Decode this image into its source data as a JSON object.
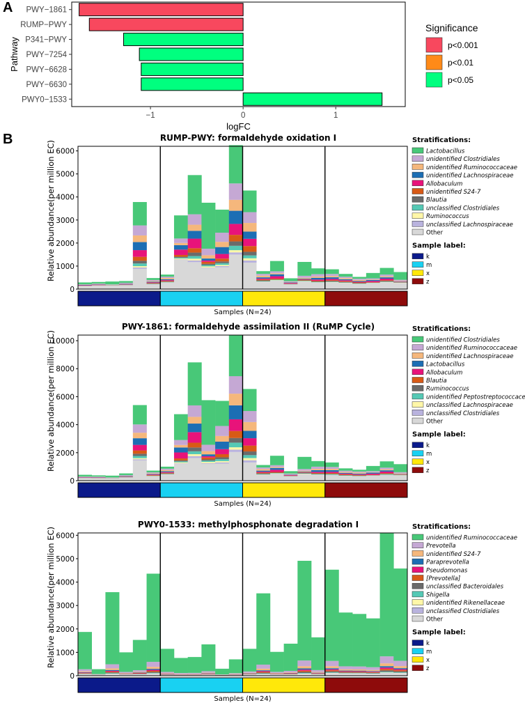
{
  "panel_a": {
    "letter": "A",
    "legend_title": "Significance",
    "legend": [
      {
        "label": "p<0.001",
        "color": "#F8485E"
      },
      {
        "label": "p<0.01",
        "color": "#FF8A18"
      },
      {
        "label": "p<0.05",
        "color": "#00FF7F"
      }
    ]
  },
  "panel_b": {
    "letter": "B"
  },
  "chart_data": [
    {
      "type": "bar",
      "orientation": "horizontal",
      "categories": [
        "PWY−1861",
        "RUMP−PWY",
        "P341−PWY",
        "PWY−7254",
        "PWY−6628",
        "PWY−6630",
        "PWY0−1533"
      ],
      "values": [
        -1.77,
        -1.66,
        -1.29,
        -1.12,
        -1.1,
        -1.1,
        1.5
      ],
      "significance": [
        "p<0.001",
        "p<0.001",
        "p<0.05",
        "p<0.05",
        "p<0.05",
        "p<0.05",
        "p<0.05"
      ],
      "xlabel": "logFC",
      "ylabel": "Pathway",
      "xlim": [
        -1.85,
        1.75
      ],
      "xticks": [
        -1,
        0,
        1
      ],
      "xtick_labels": [
        "−1",
        "0",
        "1"
      ]
    },
    {
      "type": "bar",
      "stacked": true,
      "title": "RUMP-PWY: formaldehyde oxidation I",
      "ylabel": "Relative abundance(per million EC)",
      "xlabel": "Samples (N=24)",
      "ylim": [
        0,
        6200
      ],
      "yticks": [
        0,
        1000,
        2000,
        3000,
        4000,
        5000,
        6000
      ],
      "groups": [
        "k",
        "m",
        "x",
        "z"
      ],
      "totals": [
        290,
        310,
        330,
        350,
        3780,
        480,
        630,
        3200,
        4950,
        3750,
        3450,
        6250,
        4280,
        780,
        1220,
        470,
        1180,
        900,
        860,
        660,
        530,
        700,
        920,
        740
      ],
      "other": [
        130,
        150,
        150,
        160,
        880,
        200,
        270,
        1270,
        1170,
        900,
        950,
        1500,
        1150,
        300,
        360,
        190,
        320,
        270,
        280,
        250,
        210,
        250,
        280,
        260
      ],
      "stratifications": [
        "Lactobacillus",
        "unidentified Clostridiales",
        "unidentified Ruminococcaceae",
        "unidentified Lachnospiraceae",
        "Allobaculum",
        "unidentified S24-7",
        "Blautia",
        "unclassified Clostridiales",
        "Ruminococcus",
        "unclassified Lachnospiraceae",
        "Other"
      ],
      "stratification_colors": [
        "#48C878",
        "#C5A8D4",
        "#F5B77C",
        "#1C6EB4",
        "#E8137A",
        "#D85A16",
        "#6B6B6B",
        "#55C9B5",
        "#FFF7A8",
        "#B9B3DE",
        "#D8D8D8"
      ],
      "sample_label_title": "Sample label:",
      "sample_labels": [
        "k",
        "m",
        "x",
        "z"
      ],
      "sample_label_colors": [
        "#0B1A8A",
        "#19D1F2",
        "#FFE80A",
        "#8E0B0B"
      ]
    },
    {
      "type": "bar",
      "stacked": true,
      "title": "PWY-1861: formaldehyde assimilation II (RuMP Cycle)",
      "ylabel": "Relative abundance(per million EC)",
      "xlabel": "Samples (N=24)",
      "ylim": [
        0,
        10400
      ],
      "yticks": [
        0,
        2000,
        4000,
        6000,
        8000,
        10000
      ],
      "groups": [
        "k",
        "m",
        "x",
        "z"
      ],
      "totals": [
        420,
        380,
        360,
        520,
        5400,
        720,
        1000,
        4750,
        8450,
        5750,
        5700,
        10380,
        6550,
        1120,
        1780,
        680,
        1700,
        1400,
        1300,
        880,
        780,
        1050,
        1380,
        1180
      ],
      "other": [
        180,
        170,
        170,
        220,
        1450,
        300,
        420,
        1200,
        1620,
        1200,
        1220,
        2050,
        1300,
        400,
        480,
        300,
        460,
        400,
        380,
        320,
        290,
        340,
        380,
        360
      ],
      "stratifications": [
        "unidentified Clostridiales",
        "unidentified Ruminococcaceae",
        "unidentified Lachnospiraceae",
        "Lactobacillus",
        "Allobaculum",
        "Blautia",
        "Ruminococcus",
        "unidentified Peptostreptococcaceae",
        "unclassified Lachnospiraceae",
        "unclassified Clostridiales",
        "Other"
      ],
      "stratification_colors": [
        "#48C878",
        "#C5A8D4",
        "#F5B77C",
        "#1C6EB4",
        "#E8137A",
        "#D85A16",
        "#6B6B6B",
        "#55C9B5",
        "#FFF7A8",
        "#B9B3DE",
        "#D8D8D8"
      ],
      "sample_label_title": "Sample label:",
      "sample_labels": [
        "k",
        "m",
        "x",
        "z"
      ],
      "sample_label_colors": [
        "#0B1A8A",
        "#19D1F2",
        "#FFE80A",
        "#8E0B0B"
      ]
    },
    {
      "type": "bar",
      "stacked": true,
      "title": "PWY0-1533: methylphosphonate degradation I",
      "ylabel": "Relative abundance(per million EC)",
      "xlabel": "Samples (N=24)",
      "ylim": [
        0,
        6100
      ],
      "yticks": [
        0,
        1000,
        2000,
        3000,
        4000,
        5000,
        6000
      ],
      "groups": [
        "k",
        "m",
        "x",
        "z"
      ],
      "totals": [
        1870,
        280,
        3570,
        1000,
        1530,
        4360,
        1150,
        760,
        800,
        1340,
        300,
        700,
        1150,
        3520,
        1020,
        1370,
        4910,
        1640,
        4530,
        2700,
        2640,
        2450,
        6100,
        4580
      ],
      "other": [
        60,
        40,
        70,
        50,
        60,
        80,
        30,
        30,
        30,
        40,
        20,
        30,
        50,
        60,
        50,
        50,
        70,
        50,
        100,
        90,
        90,
        80,
        110,
        100
      ],
      "stratifications": [
        "unidentified Ruminococcaceae",
        "Prevotella",
        "unidentified S24-7",
        "Paraprevotella",
        "Pseudomonas",
        "[Prevotella]",
        "unclassified Bacteroidales",
        "Shigella",
        "unidentified Rikenellaceae",
        "unclassified Clostridiales",
        "Other"
      ],
      "stratification_colors": [
        "#48C878",
        "#C5A8D4",
        "#F5B77C",
        "#1C6EB4",
        "#E8137A",
        "#D85A16",
        "#6B6B6B",
        "#55C9B5",
        "#FFF7A8",
        "#B9B3DE",
        "#D8D8D8"
      ],
      "sample_label_title": "Sample label:",
      "sample_labels": [
        "k",
        "m",
        "x",
        "z"
      ],
      "sample_label_colors": [
        "#0B1A8A",
        "#19D1F2",
        "#FFE80A",
        "#8E0B0B"
      ]
    }
  ],
  "stratifications_title": "Stratifications:"
}
